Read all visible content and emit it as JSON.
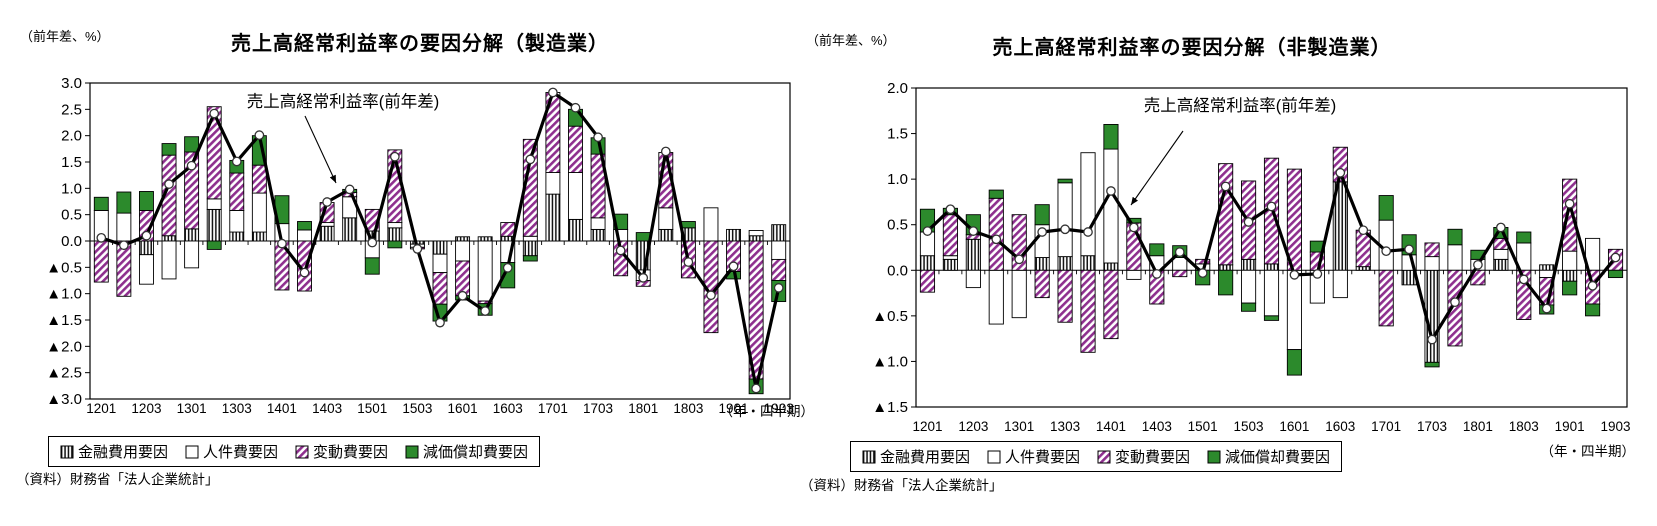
{
  "page": {
    "background": "#ffffff"
  },
  "colors": {
    "variable_purple": "#8E2F8E",
    "depreciation_green": "#2C8A2C",
    "line_black": "#000000",
    "marker_fill": "#ffffff",
    "bar_border": "#000000"
  },
  "chart_data": [
    {
      "type": "bar",
      "title": "売上高経常利益率の要因分解（製造業）",
      "unit_label": "（前年差、%）",
      "axis_note": "（年・四半期）",
      "annotation": "売上高経常利益率(前年差)",
      "source": "（資料）財務省「法人企業統計」",
      "ylim": [
        -3.0,
        3.0
      ],
      "ytick_step": 0.5,
      "ytick_labels": [
        "3.0",
        "2.5",
        "2.0",
        "1.5",
        "1.0",
        "0.5",
        "0.0",
        "▲0.5",
        "▲1.0",
        "▲1.5",
        "▲2.0",
        "▲2.5",
        "▲3.0"
      ],
      "x_label_every": 2,
      "grid": false,
      "legend_position": "bottom",
      "categories": [
        "1201",
        "1202",
        "1203",
        "1204",
        "1301",
        "1302",
        "1303",
        "1304",
        "1401",
        "1402",
        "1403",
        "1404",
        "1501",
        "1502",
        "1503",
        "1504",
        "1601",
        "1602",
        "1603",
        "1604",
        "1701",
        "1702",
        "1703",
        "1704",
        "1801",
        "1802",
        "1803",
        "1804",
        "1901",
        "1902",
        "1903"
      ],
      "series": [
        {
          "name": "金融費用要因",
          "pattern": "vertical-stripes",
          "values": [
            0,
            0,
            -0.26,
            0.1,
            0.23,
            0.6,
            0.17,
            0.17,
            0,
            0,
            0.28,
            0.44,
            0.19,
            0.25,
            -0.06,
            -0.25,
            0.08,
            0.08,
            0.09,
            -0.28,
            0.89,
            0.41,
            0.22,
            0,
            -0.55,
            0.22,
            0.25,
            0,
            0.22,
            0.1,
            0.31
          ]
        },
        {
          "name": "人件費要因",
          "pattern": "white",
          "values": [
            0.58,
            0.53,
            -0.56,
            -0.72,
            -0.51,
            0.2,
            0.41,
            0.74,
            0.33,
            0.21,
            0.07,
            0.4,
            -0.32,
            0.1,
            -0.06,
            -0.35,
            -0.38,
            -1.14,
            -0.41,
            0.09,
            0.41,
            0.89,
            0.22,
            0.22,
            -0.2,
            0.41,
            0,
            0.63,
            0,
            0.1,
            -0.35
          ]
        },
        {
          "name": "変動費要因",
          "pattern": "purple-hatch",
          "values": [
            -0.78,
            -1.05,
            0.58,
            1.53,
            1.46,
            1.75,
            0.71,
            0.53,
            -0.93,
            -0.95,
            0.38,
            0.08,
            0.41,
            1.38,
            -0.03,
            -0.6,
            -0.66,
            -0.05,
            0.26,
            1.84,
            1.52,
            0.88,
            1.21,
            -0.66,
            -0.11,
            1.05,
            -0.7,
            -1.74,
            -0.58,
            -2.62,
            -0.4
          ]
        },
        {
          "name": "減価償却費要因",
          "pattern": "green-solid",
          "values": [
            0.25,
            0.4,
            0.36,
            0.22,
            0.29,
            -0.16,
            0.24,
            0.56,
            0.53,
            0.16,
            0,
            0.06,
            -0.31,
            -0.13,
            0,
            -0.32,
            -0.08,
            -0.22,
            -0.48,
            -0.1,
            0,
            0.32,
            0.31,
            0.29,
            0.16,
            0,
            0.12,
            0,
            -0.14,
            -0.28,
            -0.4
          ]
        }
      ],
      "line_series": {
        "name": "売上高経常利益率(前年差)",
        "values": [
          0.06,
          -0.08,
          0.1,
          1.08,
          1.43,
          2.42,
          1.51,
          2.01,
          -0.05,
          -0.6,
          0.74,
          0.98,
          -0.03,
          1.6,
          -0.15,
          -1.55,
          -1.04,
          -1.33,
          -0.51,
          1.55,
          2.82,
          2.53,
          1.97,
          -0.18,
          -0.7,
          1.7,
          -0.4,
          -1.03,
          -0.48,
          -2.8,
          -0.89
        ]
      }
    },
    {
      "type": "bar",
      "title": "売上高経常利益率の要因分解（非製造業）",
      "unit_label": "（前年差、%）",
      "axis_note": "（年・四半期）",
      "annotation": "売上高経常利益率(前年差)",
      "source": "（資料）財務省「法人企業統計」",
      "ylim": [
        -1.5,
        2.0
      ],
      "ytick_step": 0.5,
      "ytick_labels": [
        "2.0",
        "1.5",
        "1.0",
        "0.5",
        "0.0",
        "▲0.5",
        "▲1.0",
        "▲1.5"
      ],
      "x_label_every": 2,
      "grid": false,
      "legend_position": "bottom",
      "categories": [
        "1201",
        "1202",
        "1203",
        "1204",
        "1301",
        "1302",
        "1303",
        "1304",
        "1401",
        "1402",
        "1403",
        "1404",
        "1501",
        "1502",
        "1503",
        "1504",
        "1601",
        "1602",
        "1603",
        "1604",
        "1701",
        "1702",
        "1703",
        "1704",
        "1801",
        "1802",
        "1803",
        "1804",
        "1901",
        "1902",
        "1903"
      ],
      "series": [
        {
          "name": "金融費用要因",
          "pattern": "vertical-stripes",
          "values": [
            0.16,
            0.12,
            0.34,
            0,
            0,
            0.14,
            0.15,
            0.16,
            0.08,
            0,
            0,
            0,
            0,
            0.06,
            0.12,
            0.07,
            0,
            0,
            0.97,
            0.04,
            0,
            -0.16,
            -1.01,
            0,
            0,
            0.12,
            0,
            0.06,
            -0.12,
            0,
            0
          ]
        },
        {
          "name": "人件費要因",
          "pattern": "white",
          "values": [
            0.26,
            0.04,
            -0.19,
            -0.59,
            -0.52,
            0.36,
            0.81,
            1.13,
            1.25,
            -0.1,
            0.16,
            0.14,
            0.07,
            0,
            -0.36,
            -0.5,
            -0.87,
            -0.36,
            -0.3,
            0,
            0.55,
            0.17,
            0.15,
            0.28,
            0.12,
            0.11,
            0.3,
            -0.08,
            0.21,
            0.35,
            0
          ]
        },
        {
          "name": "変動費要因",
          "pattern": "purple-hatch",
          "values": [
            -0.24,
            0.45,
            0.05,
            0.79,
            0.61,
            -0.3,
            -0.57,
            -0.9,
            -0.75,
            0.52,
            -0.37,
            -0.07,
            0.05,
            1.11,
            0.86,
            1.16,
            1.11,
            0.2,
            0.38,
            0.4,
            -0.61,
            0,
            0.15,
            -0.83,
            -0.16,
            0.12,
            -0.54,
            -0.3,
            0.79,
            -0.37,
            0.23
          ]
        },
        {
          "name": "減価償却費要因",
          "pattern": "green-solid",
          "values": [
            0.25,
            0.07,
            0.22,
            0.09,
            0,
            0.22,
            0.04,
            0,
            0.27,
            0.05,
            0.13,
            0.13,
            -0.16,
            -0.27,
            -0.09,
            -0.05,
            -0.28,
            0.12,
            0,
            0,
            0.27,
            0.22,
            -0.05,
            0.17,
            0.1,
            0.12,
            0.12,
            -0.1,
            -0.15,
            -0.13,
            -0.08
          ]
        }
      ],
      "line_series": {
        "name": "売上高経常利益率(前年差)",
        "values": [
          0.43,
          0.67,
          0.43,
          0.34,
          0.12,
          0.42,
          0.45,
          0.42,
          0.87,
          0.47,
          -0.04,
          0.2,
          -0.03,
          0.92,
          0.53,
          0.7,
          -0.05,
          -0.04,
          1.07,
          0.44,
          0.21,
          0.23,
          -0.76,
          -0.35,
          0.06,
          0.47,
          -0.1,
          -0.42,
          0.73,
          -0.17,
          0.14
        ]
      }
    }
  ]
}
